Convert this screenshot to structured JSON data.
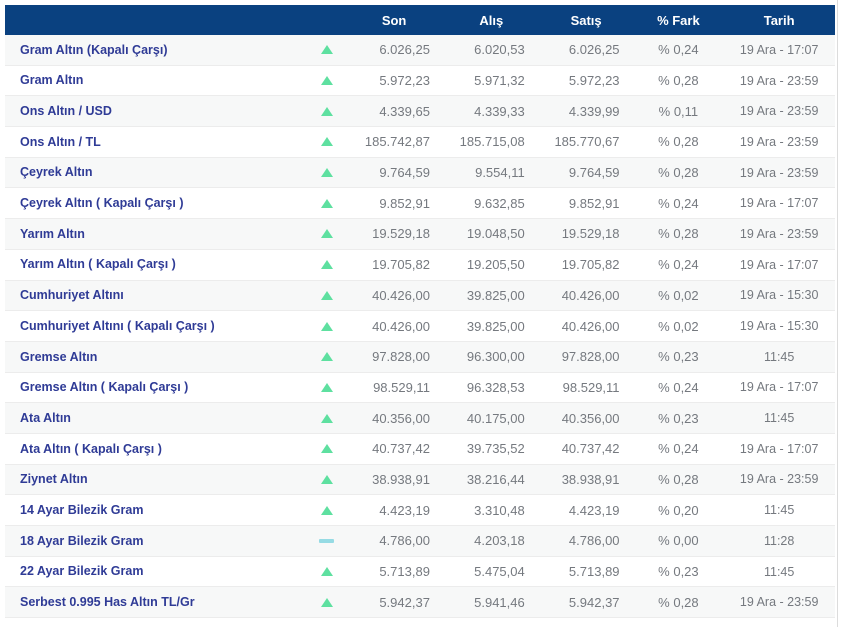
{
  "table": {
    "headers": {
      "name": "",
      "trend": "",
      "son": "Son",
      "alis": "Alış",
      "satis": "Satış",
      "fark": "% Fark",
      "tarih": "Tarih"
    },
    "rows": [
      {
        "name": "Gram Altın (Kapalı Çarşı)",
        "trend": "up",
        "son": "6.026,25",
        "alis": "6.020,53",
        "satis": "6.026,25",
        "fark": "% 0,24",
        "tarih": "19 Ara - 17:07"
      },
      {
        "name": "Gram Altın",
        "trend": "up",
        "son": "5.972,23",
        "alis": "5.971,32",
        "satis": "5.972,23",
        "fark": "% 0,28",
        "tarih": "19 Ara - 23:59"
      },
      {
        "name": "Ons Altın / USD",
        "trend": "up",
        "son": "4.339,65",
        "alis": "4.339,33",
        "satis": "4.339,99",
        "fark": "% 0,11",
        "tarih": "19 Ara - 23:59"
      },
      {
        "name": "Ons Altın / TL",
        "trend": "up",
        "son": "185.742,87",
        "alis": "185.715,08",
        "satis": "185.770,67",
        "fark": "% 0,28",
        "tarih": "19 Ara - 23:59"
      },
      {
        "name": "Çeyrek Altın",
        "trend": "up",
        "son": "9.764,59",
        "alis": "9.554,11",
        "satis": "9.764,59",
        "fark": "% 0,28",
        "tarih": "19 Ara - 23:59"
      },
      {
        "name": "Çeyrek Altın ( Kapalı Çarşı )",
        "trend": "up",
        "son": "9.852,91",
        "alis": "9.632,85",
        "satis": "9.852,91",
        "fark": "% 0,24",
        "tarih": "19 Ara - 17:07"
      },
      {
        "name": "Yarım Altın",
        "trend": "up",
        "son": "19.529,18",
        "alis": "19.048,50",
        "satis": "19.529,18",
        "fark": "% 0,28",
        "tarih": "19 Ara - 23:59"
      },
      {
        "name": "Yarım Altın ( Kapalı Çarşı )",
        "trend": "up",
        "son": "19.705,82",
        "alis": "19.205,50",
        "satis": "19.705,82",
        "fark": "% 0,24",
        "tarih": "19 Ara - 17:07"
      },
      {
        "name": "Cumhuriyet Altını",
        "trend": "up",
        "son": "40.426,00",
        "alis": "39.825,00",
        "satis": "40.426,00",
        "fark": "% 0,02",
        "tarih": "19 Ara - 15:30"
      },
      {
        "name": "Cumhuriyet Altını ( Kapalı Çarşı )",
        "trend": "up",
        "son": "40.426,00",
        "alis": "39.825,00",
        "satis": "40.426,00",
        "fark": "% 0,02",
        "tarih": "19 Ara - 15:30"
      },
      {
        "name": "Gremse Altın",
        "trend": "up",
        "son": "97.828,00",
        "alis": "96.300,00",
        "satis": "97.828,00",
        "fark": "% 0,23",
        "tarih": "11:45"
      },
      {
        "name": "Gremse Altın ( Kapalı Çarşı )",
        "trend": "up",
        "son": "98.529,11",
        "alis": "96.328,53",
        "satis": "98.529,11",
        "fark": "% 0,24",
        "tarih": "19 Ara - 17:07"
      },
      {
        "name": "Ata Altın",
        "trend": "up",
        "son": "40.356,00",
        "alis": "40.175,00",
        "satis": "40.356,00",
        "fark": "% 0,23",
        "tarih": "11:45"
      },
      {
        "name": "Ata Altın ( Kapalı Çarşı )",
        "trend": "up",
        "son": "40.737,42",
        "alis": "39.735,52",
        "satis": "40.737,42",
        "fark": "% 0,24",
        "tarih": "19 Ara - 17:07"
      },
      {
        "name": "Ziynet Altın",
        "trend": "up",
        "son": "38.938,91",
        "alis": "38.216,44",
        "satis": "38.938,91",
        "fark": "% 0,28",
        "tarih": "19 Ara - 23:59"
      },
      {
        "name": "14 Ayar Bilezik Gram",
        "trend": "up",
        "son": "4.423,19",
        "alis": "3.310,48",
        "satis": "4.423,19",
        "fark": "% 0,20",
        "tarih": "11:45"
      },
      {
        "name": "18 Ayar Bilezik Gram",
        "trend": "flat",
        "son": "4.786,00",
        "alis": "4.203,18",
        "satis": "4.786,00",
        "fark": "% 0,00",
        "tarih": "11:28"
      },
      {
        "name": "22 Ayar Bilezik Gram",
        "trend": "up",
        "son": "5.713,89",
        "alis": "5.475,04",
        "satis": "5.713,89",
        "fark": "% 0,23",
        "tarih": "11:45"
      },
      {
        "name": "Serbest 0.995 Has Altın TL/Gr",
        "trend": "up",
        "son": "5.942,37",
        "alis": "5.941,46",
        "satis": "5.942,37",
        "fark": "% 0,28",
        "tarih": "19 Ara - 23:59"
      }
    ]
  },
  "colors": {
    "header_bg": "#0a4180",
    "header_text": "#ffffff",
    "label_text": "#2f3b96",
    "value_text": "#75797f",
    "up_arrow": "#5ee0a0",
    "flat_dash": "#96dbe4",
    "row_alt_bg": "#f7f8f8",
    "row_border": "#ececec"
  }
}
